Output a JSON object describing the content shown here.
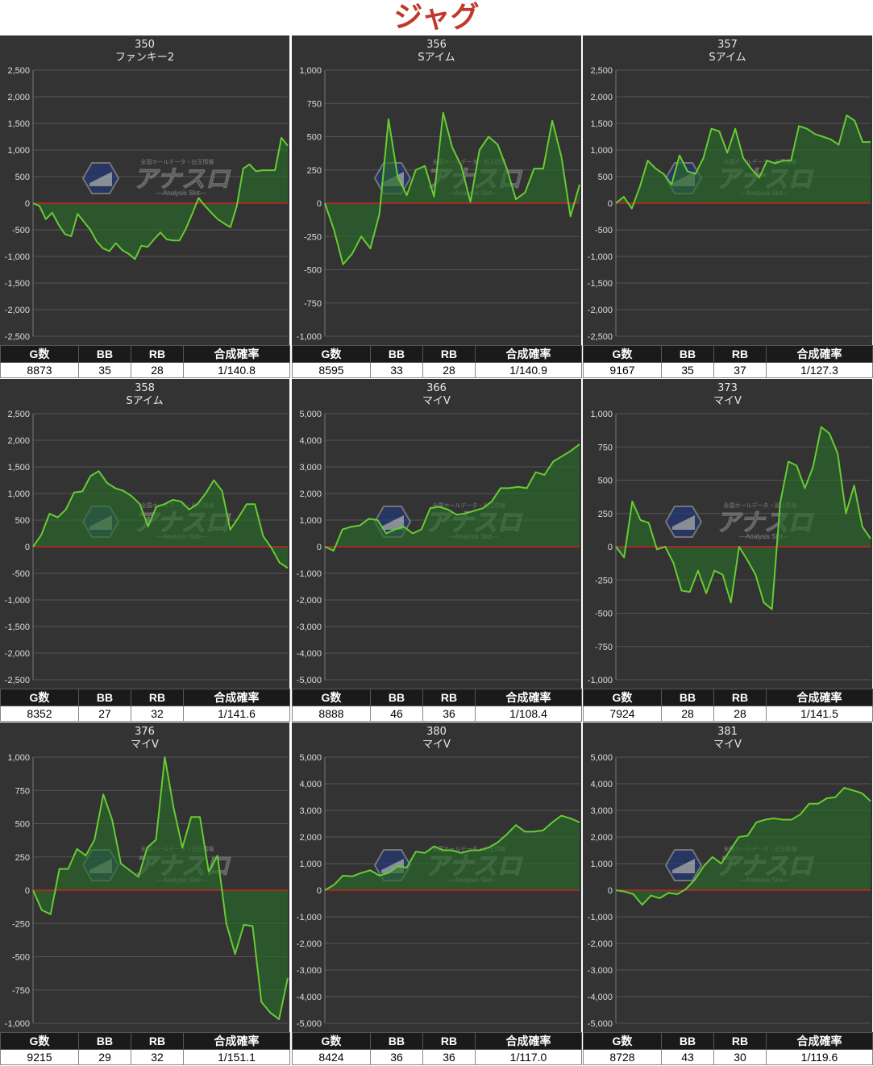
{
  "page": {
    "title": "ジャグ"
  },
  "colors": {
    "line": "#66cc33",
    "zero": "#cc2222",
    "fill": "#2a6a2a"
  },
  "stats_headers": [
    "G数",
    "BB",
    "RB",
    "合成確率"
  ],
  "watermark": {
    "main": "アナスロ",
    "sub": "―Analysis Slot―",
    "top": "全国ホールデータ・出玉情報"
  },
  "chart_data": [
    {
      "type": "line",
      "machine": "350",
      "name": "ファンキー2",
      "ylim": [
        -2500,
        2500
      ],
      "yticks": [
        2500,
        2000,
        1500,
        1000,
        500,
        0,
        -500,
        -1000,
        -1500,
        -2000,
        -2500
      ],
      "values": [
        0,
        -50,
        -300,
        -180,
        -400,
        -580,
        -620,
        -200,
        -350,
        -500,
        -720,
        -850,
        -900,
        -750,
        -880,
        -950,
        -1050,
        -800,
        -820,
        -680,
        -550,
        -680,
        -700,
        -700,
        -480,
        -200,
        100,
        -50,
        -180,
        -300,
        -380,
        -450,
        -50,
        650,
        730,
        600,
        620,
        620,
        620,
        1230,
        1080
      ],
      "stats": {
        "g": "8873",
        "bb": "35",
        "rb": "28",
        "rate": "1/140.8"
      }
    },
    {
      "type": "line",
      "machine": "356",
      "name": "Sアイム",
      "ylim": [
        -1000,
        1000
      ],
      "yticks": [
        1000,
        750,
        500,
        250,
        0,
        -250,
        -500,
        -750,
        -1000
      ],
      "values": [
        0,
        -200,
        -460,
        -380,
        -250,
        -340,
        -80,
        630,
        200,
        60,
        250,
        280,
        50,
        680,
        420,
        280,
        10,
        400,
        500,
        440,
        260,
        30,
        80,
        260,
        260,
        620,
        350,
        -100,
        140
      ],
      "stats": {
        "g": "8595",
        "bb": "33",
        "rb": "28",
        "rate": "1/140.9"
      }
    },
    {
      "type": "line",
      "machine": "357",
      "name": "Sアイム",
      "ylim": [
        -2500,
        2500
      ],
      "yticks": [
        2500,
        2000,
        1500,
        1000,
        500,
        0,
        -500,
        -1000,
        -1500,
        -2000,
        -2500
      ],
      "values": [
        0,
        120,
        -100,
        300,
        800,
        650,
        550,
        350,
        900,
        600,
        550,
        850,
        1400,
        1350,
        950,
        1400,
        850,
        650,
        480,
        800,
        750,
        800,
        800,
        1450,
        1400,
        1300,
        1250,
        1200,
        1100,
        1650,
        1550,
        1150,
        1150
      ],
      "stats": {
        "g": "9167",
        "bb": "35",
        "rb": "37",
        "rate": "1/127.3"
      }
    },
    {
      "type": "line",
      "machine": "358",
      "name": "Sアイム",
      "ylim": [
        -2500,
        2500
      ],
      "yticks": [
        2500,
        2000,
        1500,
        1000,
        500,
        0,
        -500,
        -1000,
        -1500,
        -2000,
        -2500
      ],
      "values": [
        0,
        220,
        620,
        550,
        700,
        1020,
        1040,
        1330,
        1420,
        1200,
        1100,
        1050,
        950,
        800,
        380,
        750,
        800,
        880,
        850,
        700,
        800,
        1000,
        1250,
        1050,
        320,
        550,
        800,
        800,
        200,
        -20,
        -300,
        -400
      ],
      "stats": {
        "g": "8352",
        "bb": "27",
        "rb": "32",
        "rate": "1/141.6"
      }
    },
    {
      "type": "line",
      "machine": "366",
      "name": "マイV",
      "ylim": [
        -5000,
        5000
      ],
      "yticks": [
        5000,
        4000,
        3000,
        2000,
        1000,
        0,
        -1000,
        -2000,
        -3000,
        -4000,
        -5000
      ],
      "values": [
        0,
        -150,
        650,
        750,
        800,
        1050,
        1000,
        500,
        650,
        750,
        500,
        650,
        1450,
        1500,
        1400,
        1200,
        1250,
        1350,
        1450,
        1700,
        2200,
        2200,
        2250,
        2200,
        2800,
        2700,
        3200,
        3400,
        3600,
        3850
      ],
      "stats": {
        "g": "8888",
        "bb": "46",
        "rb": "36",
        "rate": "1/108.4"
      }
    },
    {
      "type": "line",
      "machine": "373",
      "name": "マイV",
      "ylim": [
        -1000,
        1000
      ],
      "yticks": [
        1000,
        750,
        500,
        250,
        0,
        -250,
        -500,
        -750,
        -1000
      ],
      "values": [
        0,
        -80,
        340,
        200,
        180,
        -20,
        0,
        -120,
        -330,
        -340,
        -180,
        -350,
        -180,
        -210,
        -420,
        0,
        -100,
        -210,
        -420,
        -470,
        330,
        640,
        610,
        440,
        600,
        900,
        850,
        700,
        250,
        460,
        150,
        60
      ],
      "stats": {
        "g": "7924",
        "bb": "28",
        "rb": "28",
        "rate": "1/141.5"
      }
    },
    {
      "type": "line",
      "machine": "376",
      "name": "マイV",
      "ylim": [
        -1000,
        1000
      ],
      "yticks": [
        1000,
        750,
        500,
        250,
        0,
        -250,
        -500,
        -750,
        -1000
      ],
      "values": [
        0,
        -150,
        -180,
        160,
        160,
        310,
        260,
        380,
        720,
        530,
        200,
        150,
        100,
        320,
        380,
        1000,
        620,
        320,
        550,
        550,
        140,
        260,
        -250,
        -480,
        -260,
        -270,
        -840,
        -920,
        -970,
        -660
      ],
      "stats": {
        "g": "9215",
        "bb": "29",
        "rb": "32",
        "rate": "1/151.1"
      }
    },
    {
      "type": "line",
      "machine": "380",
      "name": "マイV",
      "ylim": [
        -5000,
        5000
      ],
      "yticks": [
        5000,
        4000,
        3000,
        2000,
        1000,
        0,
        -1000,
        -2000,
        -3000,
        -4000,
        -5000
      ],
      "values": [
        0,
        200,
        550,
        520,
        650,
        750,
        550,
        650,
        900,
        850,
        1450,
        1400,
        1650,
        1500,
        1500,
        1400,
        1500,
        1500,
        1600,
        1800,
        2100,
        2450,
        2200,
        2200,
        2250,
        2550,
        2800,
        2700,
        2550
      ],
      "stats": {
        "g": "8424",
        "bb": "36",
        "rb": "36",
        "rate": "1/117.0"
      }
    },
    {
      "type": "line",
      "machine": "381",
      "name": "マイV",
      "ylim": [
        -5000,
        5000
      ],
      "yticks": [
        5000,
        4000,
        3000,
        2000,
        1000,
        0,
        -1000,
        -2000,
        -3000,
        -4000,
        -5000
      ],
      "values": [
        0,
        -50,
        -150,
        -550,
        -200,
        -300,
        -100,
        -150,
        50,
        400,
        900,
        1250,
        1000,
        1500,
        2000,
        2050,
        2550,
        2650,
        2700,
        2650,
        2650,
        2850,
        3250,
        3250,
        3450,
        3500,
        3850,
        3750,
        3650,
        3350
      ],
      "stats": {
        "g": "8728",
        "bb": "43",
        "rb": "30",
        "rate": "1/119.6"
      }
    }
  ]
}
